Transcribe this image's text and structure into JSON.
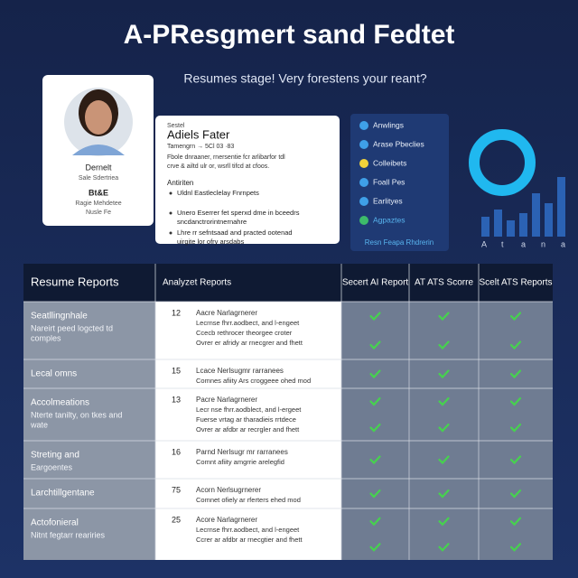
{
  "header": {
    "title": "A-PResgmert sand Fedtet",
    "subtitle": "Resumes stage! Very forestens your reant?"
  },
  "profile": {
    "name": "Dernelt",
    "role": "Sale Sdertriea",
    "section": "Bt&E",
    "details": [
      "Ragie Mehdetee",
      "Nusle Fe"
    ]
  },
  "summary": {
    "label": "Sestel",
    "name": "Adiels Fater",
    "meta": "Tamengrn → 5Cl 03 ·83",
    "paragraph": [
      "Fbole dnraaner, rnersentie fcr arlibarfor tdl",
      "crve & ailtd ulr or, wsrll tifcd at cfoos."
    ],
    "subheading": "Antiriten",
    "bullets": [
      "Uldnl Eastleclelay Fnrnpets",
      "Unero Eserrer fet sperxd dme in bceedrs",
      "Lhre rr sefntsaad and practed ootenad"
    ],
    "bullet_notes": [
      "",
      "sncdanctrorintnernahre",
      "uirgite lor ofry arsdabs"
    ]
  },
  "menu": {
    "items": [
      "Anwlings",
      "Arase Pbeclies",
      "Colleibets",
      "Foall Pes",
      "Earlityes",
      "Agpaztes"
    ],
    "footer": "Resn Feapa Rhdrerin"
  },
  "mini_chart": {
    "axis_labels": [
      "A",
      "t",
      "a",
      "n",
      "a"
    ]
  },
  "table": {
    "columns": [
      "Resume Reports",
      "Analyzet Reports",
      "Secert AI Report",
      "AT ATS Scorre",
      "Scelt ATS Reports"
    ],
    "rows": [
      {
        "title": "Seatllingnhale",
        "note": [
          "Nareirt peed logcted td",
          "comples"
        ],
        "number": "12",
        "lines": [
          "Aacre Narlagrnerer",
          "Lecrnse fhrr.aodbect, and l-engeet",
          "Ccecb rethrocer theorgee croter",
          "Ovrer er afridy ar rnecgrer and fhett"
        ]
      },
      {
        "title": "Lecal omns",
        "note": [],
        "number": "15",
        "lines": [
          "Lcace Nerlsugmr rarranees",
          "Comnes afiity Ars croggeee ohed mod"
        ]
      },
      {
        "title": "Accolmeations",
        "note": [
          "Nterte tanilty, on tkes and",
          "wate"
        ],
        "number": "13",
        "lines": [
          "Pacre Narlagrnerer",
          "Lecr nse fhrr.aodblect, and l-ergeet",
          "Fuerse vrtag ar tharadieis rrtdece",
          "Ovrer ar afdbr ar recrgler and fhett"
        ]
      },
      {
        "title": "Streting and",
        "note": [
          "Eargoentes"
        ],
        "number": "16",
        "lines": [
          "Parnd Nerlsugr mr rarranees",
          "Comnt afiity amgrrie arelegfid"
        ]
      },
      {
        "title": "Larchtillgentane",
        "note": [],
        "number": "75",
        "lines": [
          "Acorn Nerlsugrnerer",
          "Comnet ofiely ar rferters ehed mod"
        ]
      },
      {
        "title": "Actofonieral",
        "note": [
          "Nitnt fegtarr reariries"
        ],
        "number": "25",
        "lines": [
          "Acore Narlagrnerer",
          "Lecrnse fhrr.aodbect, and l-engeet",
          "Ccrer ar afdbr ar rnecgtier and fhett"
        ]
      }
    ]
  }
}
